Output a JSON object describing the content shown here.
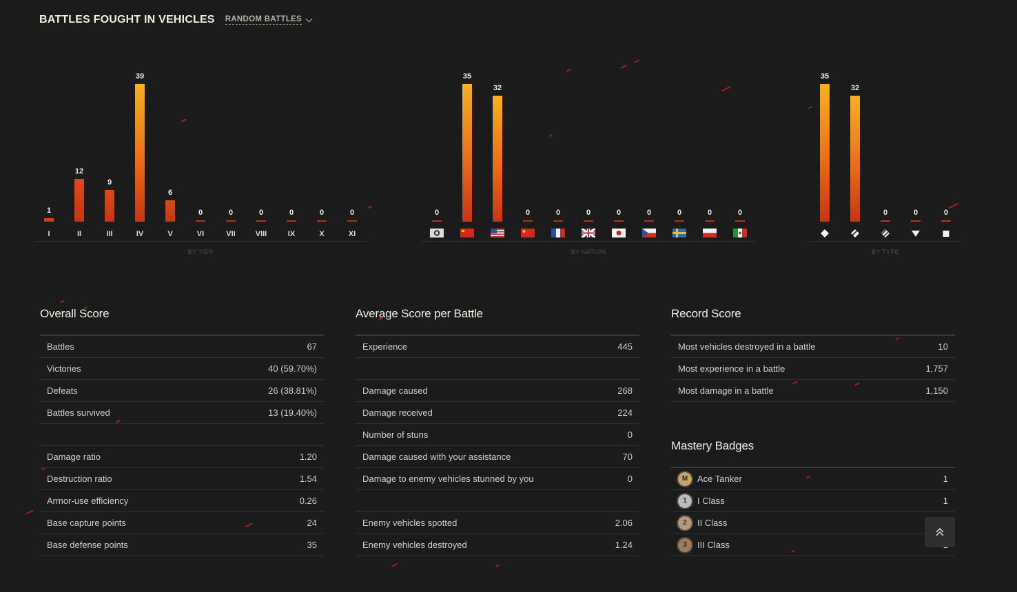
{
  "header": {
    "title": "BATTLES FOUGHT IN VEHICLES",
    "mode_label": "RANDOM BATTLES"
  },
  "chart_data": [
    {
      "type": "bar",
      "title": "",
      "caption": "BY TIER",
      "categories": [
        "I",
        "II",
        "III",
        "IV",
        "V",
        "VI",
        "VII",
        "VIII",
        "IX",
        "X",
        "XI"
      ],
      "values": [
        1,
        12,
        9,
        39,
        6,
        0,
        0,
        0,
        0,
        0,
        0
      ],
      "ylim": [
        0,
        39
      ]
    },
    {
      "type": "bar",
      "title": "",
      "caption": "BY NATION",
      "categories": [
        "germany",
        "ussr",
        "usa",
        "china",
        "france",
        "uk",
        "japan",
        "czech",
        "sweden",
        "poland",
        "italy"
      ],
      "values": [
        0,
        35,
        32,
        0,
        0,
        0,
        0,
        0,
        0,
        0,
        0
      ],
      "ylim": [
        0,
        35
      ]
    },
    {
      "type": "bar",
      "title": "",
      "caption": "BY TYPE",
      "categories": [
        "light-tank-icon",
        "medium-tank-icon",
        "heavy-tank-icon",
        "tank-destroyer-icon",
        "spg-icon"
      ],
      "values": [
        35,
        32,
        0,
        0,
        0
      ],
      "ylim": [
        0,
        35
      ]
    }
  ],
  "overall": {
    "title": "Overall Score",
    "rows": [
      {
        "label": "Battles",
        "value": "67"
      },
      {
        "label": "Victories",
        "value": "40 (59.70%)"
      },
      {
        "label": "Defeats",
        "value": "26 (38.81%)"
      },
      {
        "label": "Battles survived",
        "value": "13 (19.40%)"
      },
      {
        "label": "",
        "value": ""
      },
      {
        "label": "Damage ratio",
        "value": "1.20"
      },
      {
        "label": "Destruction ratio",
        "value": "1.54"
      },
      {
        "label": "Armor-use efficiency",
        "value": "0.26"
      },
      {
        "label": "Base capture points",
        "value": "24"
      },
      {
        "label": "Base defense points",
        "value": "35"
      }
    ]
  },
  "average": {
    "title": "Average Score per Battle",
    "rows": [
      {
        "label": "Experience",
        "value": "445"
      },
      {
        "label": "",
        "value": ""
      },
      {
        "label": "Damage caused",
        "value": "268"
      },
      {
        "label": "Damage received",
        "value": "224"
      },
      {
        "label": "Number of stuns",
        "value": "0"
      },
      {
        "label": "Damage caused with your assistance",
        "value": "70"
      },
      {
        "label": "Damage to enemy vehicles stunned by you",
        "value": "0"
      },
      {
        "label": "",
        "value": ""
      },
      {
        "label": "Enemy vehicles spotted",
        "value": "2.06"
      },
      {
        "label": "Enemy vehicles destroyed",
        "value": "1.24"
      }
    ]
  },
  "record": {
    "title": "Record Score",
    "rows": [
      {
        "label": "Most vehicles destroyed in a battle",
        "value": "10"
      },
      {
        "label": "Most experience in a battle",
        "value": "1,757"
      },
      {
        "label": "Most damage in a battle",
        "value": "1,150"
      }
    ]
  },
  "mastery": {
    "title": "Mastery Badges",
    "rows": [
      {
        "icon": "ace-tanker-badge-icon",
        "glyph": "M",
        "label": "Ace Tanker",
        "value": "1",
        "color": "#c9a46a"
      },
      {
        "icon": "first-class-badge-icon",
        "glyph": "1",
        "label": "I Class",
        "value": "1",
        "color": "#b9bcc0"
      },
      {
        "icon": "second-class-badge-icon",
        "glyph": "2",
        "label": "II Class",
        "value": "2",
        "color": "#b49a78"
      },
      {
        "icon": "third-class-badge-icon",
        "glyph": "3",
        "label": "III Class",
        "value": "1",
        "color": "#9c7b5a"
      }
    ]
  },
  "colors": {
    "bar_top": "#f6b21f",
    "bar_bottom": "#c73514",
    "zero_bar": "#b8321a",
    "background": "#1b1b1c"
  }
}
